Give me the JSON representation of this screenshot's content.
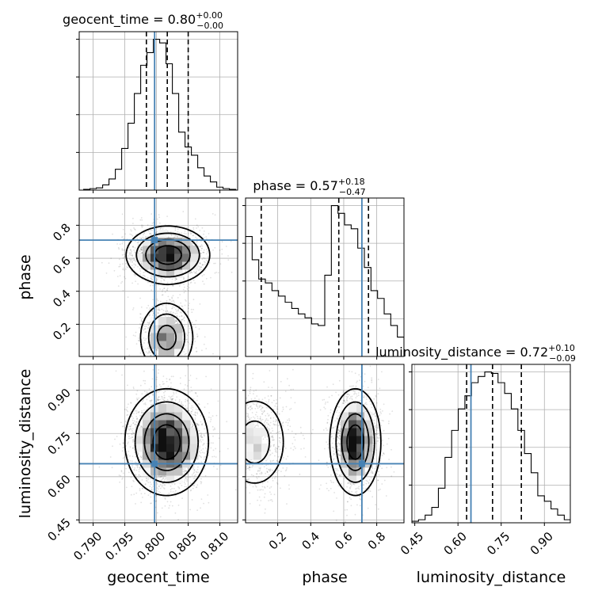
{
  "chart_data": {
    "type": "corner",
    "parameters": [
      "geocent_time",
      "phase",
      "luminosity_distance"
    ],
    "truths": {
      "geocent_time": 0.7997,
      "phase": 0.71,
      "luminosity_distance": 0.645
    },
    "truth_color": "#4682b4",
    "grid": true,
    "titles": [
      {
        "param": "geocent_time",
        "text": "geocent_time = 0.80",
        "sup": "+0.00",
        "sub": "−0.00"
      },
      {
        "param": "phase",
        "text": "phase = 0.57",
        "sup": "+0.18",
        "sub": "−0.47"
      },
      {
        "param": "luminosity_distance",
        "text": "luminosity_distance = 0.72",
        "sup": "+0.10",
        "sub": "−0.09"
      }
    ],
    "axes": {
      "geocent_time": {
        "label": "geocent_time",
        "range": [
          0.7878,
          0.8128
        ],
        "ticks": [
          0.79,
          0.795,
          0.8,
          0.805,
          0.81
        ],
        "tick_labels": [
          "0.790",
          "0.795",
          "0.800",
          "0.805",
          "0.810"
        ]
      },
      "phase": {
        "label": "phase",
        "range": [
          0.005,
          0.965
        ],
        "ticks": [
          0.2,
          0.4,
          0.6,
          0.8
        ],
        "tick_labels": [
          "0.2",
          "0.4",
          "0.6",
          "0.8"
        ]
      },
      "luminosity_distance": {
        "label": "luminosity_distance",
        "range": [
          0.44,
          0.99
        ],
        "ticks": [
          0.45,
          0.6,
          0.75,
          0.9
        ],
        "tick_labels": [
          "0.45",
          "0.60",
          "0.75",
          "0.90"
        ]
      }
    },
    "quantiles": {
      "geocent_time": [
        0.7984,
        0.8017,
        0.805
      ],
      "phase": [
        0.1,
        0.57,
        0.75
      ],
      "luminosity_distance": [
        0.63,
        0.72,
        0.82
      ]
    },
    "histograms": {
      "geocent_time": {
        "edges": [
          0.7885,
          0.7895,
          0.7905,
          0.7915,
          0.7925,
          0.7935,
          0.7945,
          0.7955,
          0.7965,
          0.7975,
          0.7985,
          0.7995,
          0.8005,
          0.8015,
          0.8025,
          0.8035,
          0.8045,
          0.8055,
          0.8065,
          0.8075,
          0.8085,
          0.8095,
          0.8105,
          0.8115,
          0.8125
        ],
        "counts": [
          1,
          2,
          3,
          7,
          15,
          28,
          56,
          90,
          130,
          168,
          185,
          203,
          198,
          170,
          130,
          78,
          58,
          47,
          30,
          19,
          11,
          4,
          2,
          1
        ]
      },
      "phase": {
        "edges": [
          0.005,
          0.045,
          0.085,
          0.125,
          0.165,
          0.205,
          0.245,
          0.285,
          0.325,
          0.365,
          0.405,
          0.445,
          0.485,
          0.525,
          0.565,
          0.605,
          0.645,
          0.685,
          0.725,
          0.765,
          0.805,
          0.845,
          0.885,
          0.925,
          0.965
        ],
        "counts": [
          155,
          125,
          100,
          95,
          85,
          78,
          70,
          62,
          55,
          50,
          42,
          40,
          105,
          195,
          185,
          170,
          165,
          140,
          115,
          85,
          75,
          55,
          40,
          25
        ]
      },
      "luminosity_distance": {
        "edges": [
          0.44,
          0.463,
          0.486,
          0.509,
          0.532,
          0.555,
          0.578,
          0.601,
          0.624,
          0.647,
          0.67,
          0.693,
          0.716,
          0.739,
          0.762,
          0.785,
          0.808,
          0.831,
          0.854,
          0.877,
          0.9,
          0.923,
          0.946,
          0.969,
          0.99
        ],
        "counts": [
          2,
          4,
          10,
          20,
          45,
          85,
          120,
          148,
          165,
          182,
          190,
          196,
          194,
          182,
          168,
          148,
          120,
          90,
          65,
          35,
          28,
          18,
          10,
          4
        ]
      }
    },
    "joint_modes": [
      {
        "x": "geocent_time",
        "y": "phase",
        "components": [
          {
            "mx": 0.8018,
            "my": 0.62,
            "sx": 0.0032,
            "sy": 0.085,
            "w": 0.62
          },
          {
            "mx": 0.8016,
            "my": 0.12,
            "sx": 0.0022,
            "sy": 0.11,
            "w": 0.38
          }
        ]
      },
      {
        "x": "geocent_time",
        "y": "luminosity_distance",
        "components": [
          {
            "mx": 0.8016,
            "my": 0.72,
            "sx": 0.0032,
            "sy": 0.09,
            "w": 1.0
          }
        ]
      },
      {
        "x": "phase",
        "y": "luminosity_distance",
        "components": [
          {
            "mx": 0.67,
            "my": 0.72,
            "sx": 0.075,
            "sy": 0.09,
            "w": 0.62
          },
          {
            "mx": 0.06,
            "my": 0.72,
            "sx": 0.11,
            "sy": 0.09,
            "w": 0.38
          }
        ]
      }
    ]
  }
}
